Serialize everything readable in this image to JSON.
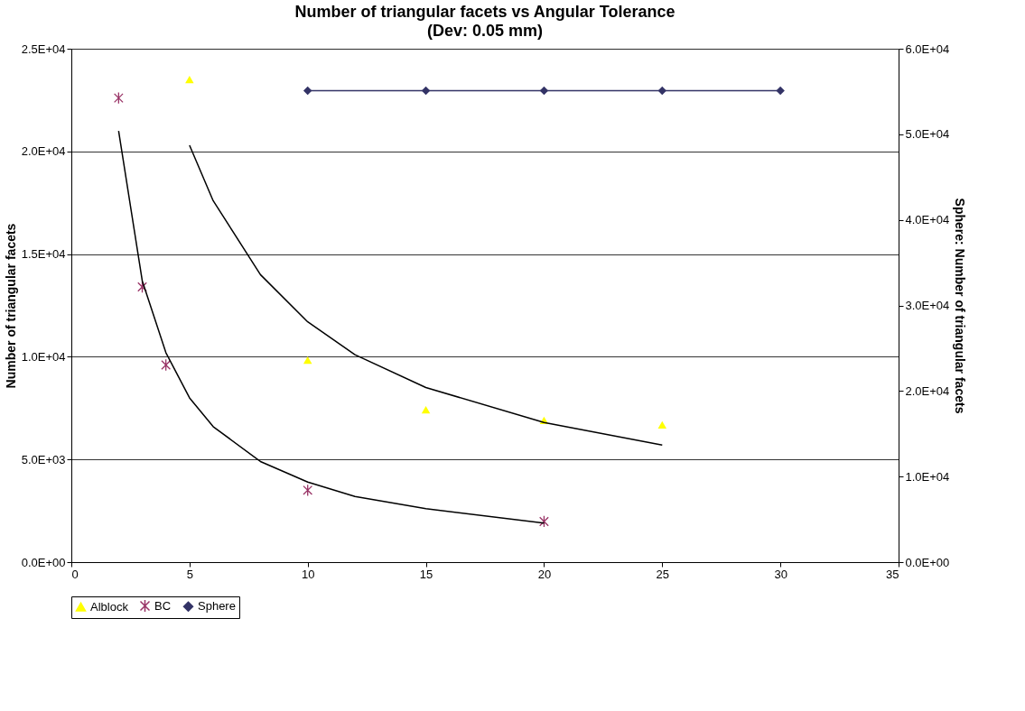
{
  "chart_data": {
    "type": "scatter",
    "title": "Number of triangular facets vs Angular Tolerance",
    "subtitle": "(Dev: 0.05 mm)",
    "ylabel": "Number of triangular facets",
    "y2label": "Sphere: Number of triangular facets",
    "xlim": [
      0,
      35
    ],
    "xticks": [
      0,
      5,
      10,
      15,
      20,
      25,
      30,
      35
    ],
    "ylim": [
      0,
      25000
    ],
    "yticks": [
      {
        "value": 0,
        "label": "0.0E+00"
      },
      {
        "value": 5000,
        "label": "5.0E+03"
      },
      {
        "value": 10000,
        "label": "1.0E+04"
      },
      {
        "value": 15000,
        "label": "1.5E+04"
      },
      {
        "value": 20000,
        "label": "2.0E+04"
      },
      {
        "value": 25000,
        "label": "2.5E+04"
      }
    ],
    "y2lim": [
      0,
      60000
    ],
    "y2ticks": [
      {
        "value": 0,
        "label": "0.0E+00"
      },
      {
        "value": 10000,
        "label": "1.0E+04"
      },
      {
        "value": 20000,
        "label": "2.0E+04"
      },
      {
        "value": 30000,
        "label": "3.0E+04"
      },
      {
        "value": 40000,
        "label": "4.0E+04"
      },
      {
        "value": 50000,
        "label": "5.0E+04"
      },
      {
        "value": 60000,
        "label": "6.0E+04"
      }
    ],
    "grid": "y",
    "legend": "bottom",
    "series": [
      {
        "name": "Alblock",
        "marker": "triangle",
        "color": "#ffff00",
        "x": [
          5,
          10,
          15,
          20,
          25
        ],
        "values": [
          23500,
          9840,
          7420,
          6900,
          6680
        ]
      },
      {
        "name": "BC",
        "marker": "cross",
        "color": "#993366",
        "x": [
          2,
          3,
          4,
          10,
          20
        ],
        "values": [
          22600,
          13400,
          9600,
          3500,
          1980
        ]
      },
      {
        "name": "Sphere",
        "type": "line",
        "marker": "diamond",
        "color": "#333366",
        "axis": "y2",
        "x": [
          10,
          15,
          20,
          25,
          30
        ],
        "values": [
          55100,
          55100,
          55100,
          55100,
          55100
        ]
      },
      {
        "type": "line",
        "marker": "none",
        "color": "#000000",
        "x": [
          2,
          3,
          4,
          5,
          6,
          8,
          10,
          12,
          15,
          20
        ],
        "values": [
          21000,
          13700,
          10200,
          8000,
          6600,
          4900,
          3900,
          3200,
          2600,
          1900
        ]
      },
      {
        "type": "line",
        "marker": "none",
        "color": "#000000",
        "x": [
          5,
          6,
          8,
          10,
          12,
          15,
          20,
          25
        ],
        "values": [
          20300,
          17600,
          14000,
          11700,
          10100,
          8500,
          6800,
          5700
        ]
      }
    ]
  }
}
